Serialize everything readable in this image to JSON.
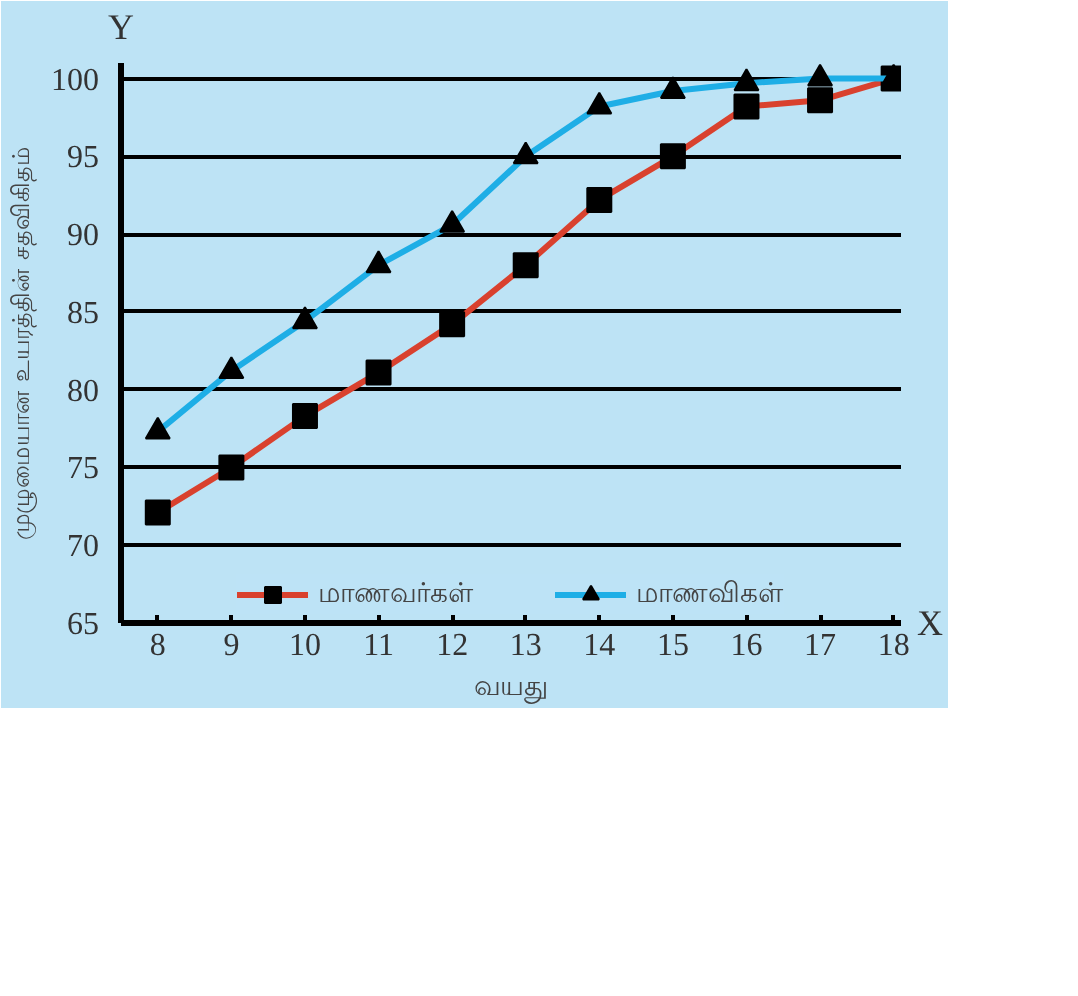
{
  "chart_data": {
    "type": "line",
    "xlabel": "வயது",
    "ylabel": "முழுமையான உயரத்தின் சதவிகிதம்",
    "annotations": [
      "Y",
      "X"
    ],
    "x": [
      8,
      9,
      10,
      11,
      12,
      13,
      14,
      15,
      16,
      17,
      18
    ],
    "series": [
      {
        "name": "மாணவர்கள்",
        "color": "#d9412e",
        "marker": "square",
        "values": [
          72.1,
          75,
          78.3,
          81.1,
          84.2,
          88,
          92.2,
          95,
          98.2,
          98.6,
          100
        ]
      },
      {
        "name": "மாணவிகள்",
        "color": "#1eaee6",
        "marker": "triangle",
        "values": [
          77.3,
          81.2,
          84.4,
          88,
          90.6,
          95,
          98.2,
          99.2,
          99.7,
          100,
          100
        ]
      }
    ],
    "xlim": [
      7.5,
      18.1
    ],
    "ylim": [
      65,
      101
    ],
    "xticks": [
      8,
      9,
      10,
      11,
      12,
      13,
      14,
      15,
      16,
      17,
      18
    ],
    "yticks": [
      65,
      70,
      75,
      80,
      85,
      90,
      95,
      100
    ],
    "grid": "y",
    "legend": "bottom",
    "line_style": "solid"
  }
}
